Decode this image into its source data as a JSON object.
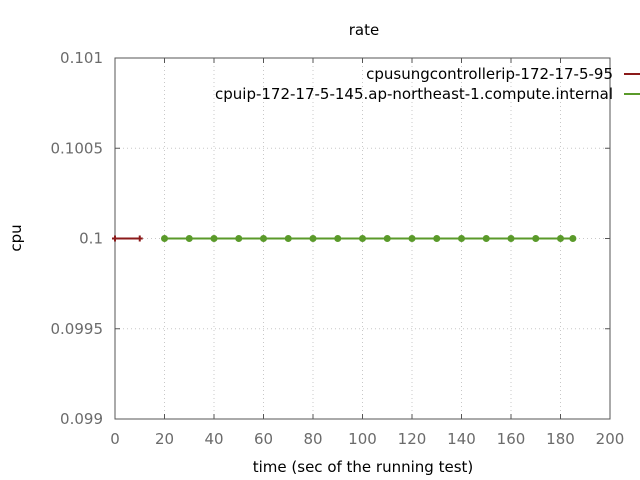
{
  "chart_data": {
    "type": "line",
    "title": "rate",
    "xlabel": "time (sec of the running test)",
    "ylabel": "cpu",
    "xlim": [
      0,
      200
    ],
    "ylim": [
      0.099,
      0.101
    ],
    "x_ticks": [
      0,
      20,
      40,
      60,
      80,
      100,
      120,
      140,
      160,
      180,
      200
    ],
    "x_tick_labels": [
      "0",
      "20",
      "40",
      "60",
      "80",
      "100",
      "120",
      "140",
      "160",
      "180",
      "200"
    ],
    "y_ticks": [
      0.099,
      0.0995,
      0.1,
      0.1005,
      0.101
    ],
    "y_tick_labels": [
      "0.099",
      "0.0995",
      "0.1",
      "0.1005",
      "0.101"
    ],
    "grid": true,
    "legend_position": "top-right",
    "series": [
      {
        "name": "cpusungcontrollerip-172-17-5-95",
        "color": "#8b1a1a",
        "marker": "plus",
        "x": [
          0,
          10
        ],
        "y": [
          0.1,
          0.1
        ]
      },
      {
        "name": "cpuip-172-17-5-145.ap-northeast-1.compute.internal",
        "color": "#5a9a2a",
        "marker": "circle",
        "x": [
          20,
          30,
          40,
          50,
          60,
          70,
          80,
          90,
          100,
          110,
          120,
          130,
          140,
          150,
          160,
          170,
          180,
          185
        ],
        "y": [
          0.1,
          0.1,
          0.1,
          0.1,
          0.1,
          0.1,
          0.1,
          0.1,
          0.1,
          0.1,
          0.1,
          0.1,
          0.1,
          0.1,
          0.1,
          0.1,
          0.1,
          0.1
        ]
      }
    ]
  }
}
